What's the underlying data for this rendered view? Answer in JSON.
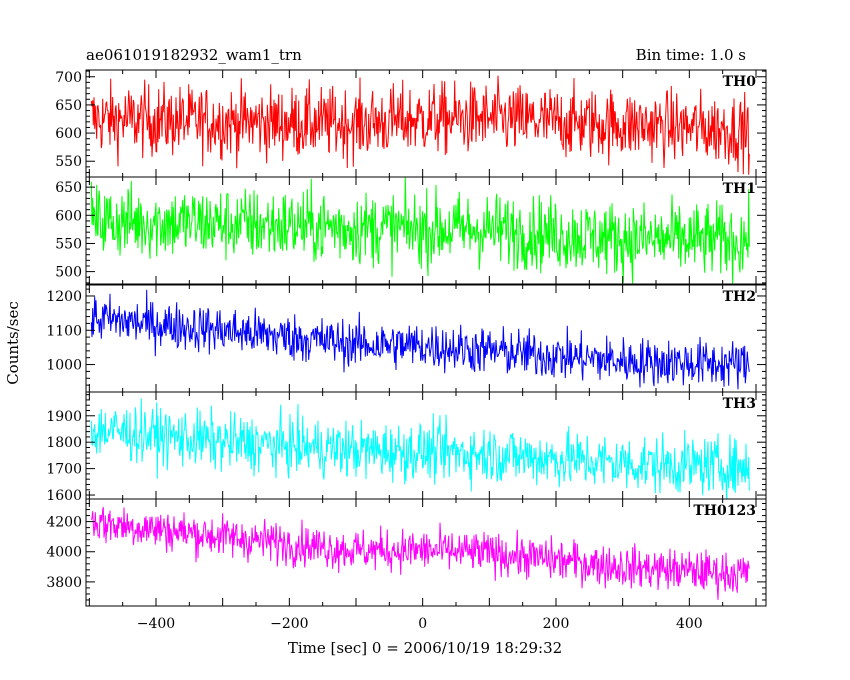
{
  "header": {
    "title": "ae061019182932_wam1_trn",
    "bin_time": "Bin time: 1.0 s"
  },
  "chart_data": {
    "type": "line",
    "title": "ae061019182932_wam1_trn",
    "xlabel": "Time [sec] 0 = 2006/10/19 18:29:32",
    "ylabel": "Counts/sec",
    "xlim": [
      -505,
      515
    ],
    "xticks": [
      -400,
      -200,
      0,
      200,
      400
    ],
    "x_start": -497,
    "x_end": 490,
    "x_step": 1,
    "panels": [
      {
        "name": "TH0",
        "color": "#ff0000",
        "ylim": [
          522,
          712
        ],
        "yticks": [
          550,
          600,
          650,
          700
        ],
        "trend": [
          [
            -497,
            625
          ],
          [
            -300,
            620
          ],
          [
            -100,
            617
          ],
          [
            0,
            625
          ],
          [
            100,
            625
          ],
          [
            300,
            615
          ],
          [
            490,
            605
          ]
        ],
        "noise": 32
      },
      {
        "name": "TH1",
        "color": "#00ff00",
        "ylim": [
          478,
          668
        ],
        "yticks": [
          500,
          550,
          600,
          650
        ],
        "trend": [
          [
            -497,
            590
          ],
          [
            -300,
            585
          ],
          [
            -100,
            578
          ],
          [
            0,
            575
          ],
          [
            100,
            575
          ],
          [
            300,
            558
          ],
          [
            490,
            555
          ]
        ],
        "noise": 33
      },
      {
        "name": "TH2",
        "color": "#0000ff",
        "ylim": [
          920,
          1232
        ],
        "yticks": [
          1000,
          1100,
          1200
        ],
        "trend": [
          [
            -497,
            1135
          ],
          [
            -300,
            1100
          ],
          [
            -100,
            1060
          ],
          [
            0,
            1055
          ],
          [
            100,
            1040
          ],
          [
            300,
            1010
          ],
          [
            490,
            1000
          ]
        ],
        "noise": 35
      },
      {
        "name": "TH3",
        "color": "#00ffff",
        "ylim": [
          1585,
          1990
        ],
        "yticks": [
          1600,
          1700,
          1800,
          1900
        ],
        "trend": [
          [
            -497,
            1850
          ],
          [
            -300,
            1800
          ],
          [
            -100,
            1770
          ],
          [
            0,
            1765
          ],
          [
            100,
            1755
          ],
          [
            300,
            1720
          ],
          [
            490,
            1705
          ]
        ],
        "noise": 55
      },
      {
        "name": "TH0123",
        "color": "#ff00ff",
        "ylim": [
          3640,
          4350
        ],
        "yticks": [
          3800,
          4000,
          4200
        ],
        "trend": [
          [
            -497,
            4200
          ],
          [
            -300,
            4100
          ],
          [
            -100,
            4010
          ],
          [
            0,
            4010
          ],
          [
            100,
            3990
          ],
          [
            300,
            3900
          ],
          [
            490,
            3850
          ]
        ],
        "noise": 70
      }
    ]
  }
}
